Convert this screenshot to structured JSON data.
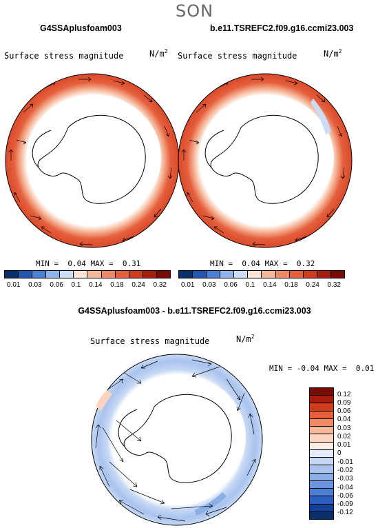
{
  "season": "SON",
  "panels": [
    {
      "title": "G4SSAplusfoam003",
      "var": "Surface stress magnitude",
      "unit": "N/m",
      "unit_exp": "2",
      "min_label": "MIN =",
      "min": "0.04",
      "max_label": "MAX =",
      "max": "0.31"
    },
    {
      "title": "b.e11.TSREFC2.f09.g16.ccmi23.003",
      "var": "Surface stress magnitude",
      "unit": "N/m",
      "unit_exp": "2",
      "min_label": "MIN =",
      "min": "0.04",
      "max_label": "MAX =",
      "max": "0.32"
    }
  ],
  "abs_colorbar": {
    "labels": [
      "0.01",
      "0.03",
      "0.06",
      "0.1",
      "0.14",
      "0.18",
      "0.24",
      "0.32"
    ],
    "colors": [
      "#08306b",
      "#2256b0",
      "#4b7fd6",
      "#8fb3ea",
      "#cddcf5",
      "#fbe3d5",
      "#f6b89b",
      "#f08a66",
      "#e5603d",
      "#cf3d1c",
      "#a81e0e",
      "#7a0a04"
    ]
  },
  "diff_panel": {
    "title": "G4SSAplusfoam003 - b.e11.TSREFC2.f09.g16.ccmi23.003",
    "var": "Surface stress magnitude",
    "unit": "N/m",
    "unit_exp": "2",
    "min_label": "MIN =",
    "min": "-0.04",
    "max_label": "MAX =",
    "max": "0.01"
  },
  "diff_colorbar": {
    "labels": [
      "0.12",
      "0.09",
      "0.06",
      "0.04",
      "0.03",
      "0.02",
      "0.01",
      "0",
      "-0.01",
      "-0.02",
      "-0.03",
      "-0.04",
      "-0.06",
      "-0.09",
      "-0.12"
    ],
    "colors": [
      "#7a0a04",
      "#a81e0e",
      "#cf3d1c",
      "#e5603d",
      "#f08a66",
      "#f6b89b",
      "#fbd3bf",
      "#fdeee4",
      "#e3ecfa",
      "#c6d8f4",
      "#a9c3ee",
      "#8aaee6",
      "#6a95dc",
      "#4b7fd6",
      "#2a5fbf",
      "#15409a",
      "#08306b"
    ]
  }
}
